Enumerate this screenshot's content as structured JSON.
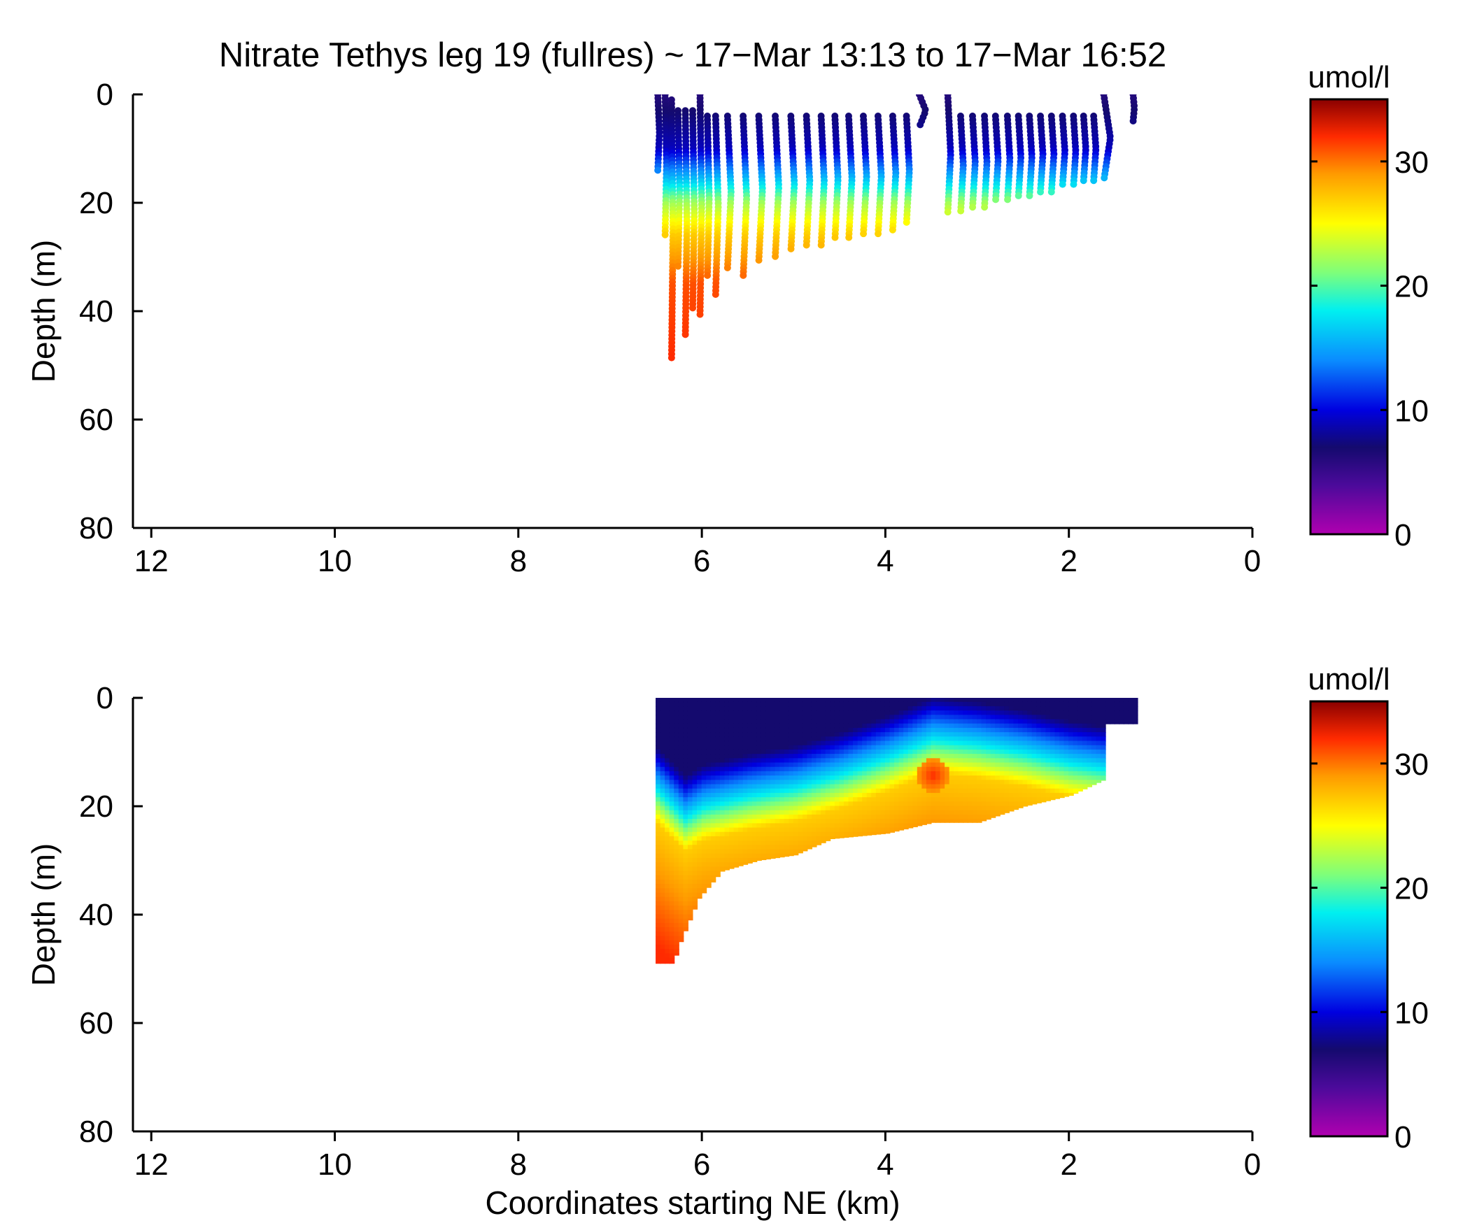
{
  "figure": {
    "title": "Nitrate Tethys leg 19 (fullres) ~ 17−Mar 13:13 to 17−Mar 16:52"
  },
  "colormap": {
    "name": "jet-like with magenta low end",
    "stops": [
      {
        "v": 0,
        "color": "#b000b0"
      },
      {
        "v": 4,
        "color": "#4a0a9a"
      },
      {
        "v": 7,
        "color": "#140a6e"
      },
      {
        "v": 10,
        "color": "#0000e0"
      },
      {
        "v": 14,
        "color": "#0a8cff"
      },
      {
        "v": 18,
        "color": "#00f0f0"
      },
      {
        "v": 21,
        "color": "#7cff7c"
      },
      {
        "v": 25,
        "color": "#ffff00"
      },
      {
        "v": 29,
        "color": "#ff9a00"
      },
      {
        "v": 32,
        "color": "#ff2a00"
      },
      {
        "v": 35,
        "color": "#8a0000"
      }
    ]
  },
  "chart_data": [
    {
      "type": "scatter",
      "panel": "top",
      "xlabel": "",
      "ylabel": "Depth (m)",
      "xlim": [
        12.2,
        0
      ],
      "ylim": [
        0,
        80
      ],
      "y_reversed": true,
      "xticks": [
        12,
        10,
        8,
        6,
        4,
        2,
        0
      ],
      "yticks": [
        0,
        20,
        40,
        60,
        80
      ],
      "colorbar": {
        "label": "umol/l",
        "range": [
          0,
          35
        ],
        "ticks": [
          0,
          10,
          20,
          30
        ]
      },
      "grid": false,
      "value_profile": [
        {
          "depth": 0,
          "nitrate": 6
        },
        {
          "depth": 10,
          "nitrate": 9
        },
        {
          "depth": 15,
          "nitrate": 15
        },
        {
          "depth": 20,
          "nitrate": 22
        },
        {
          "depth": 26,
          "nitrate": 27
        },
        {
          "depth": 35,
          "nitrate": 31
        },
        {
          "depth": 49,
          "nitrate": 32
        }
      ],
      "profiles": [
        {
          "x": 6.48,
          "top": 0,
          "bottom": 14
        },
        {
          "x": 6.4,
          "top": 0,
          "bottom": 26
        },
        {
          "x": 6.33,
          "top": 1,
          "bottom": 49
        },
        {
          "x": 6.26,
          "top": 3,
          "bottom": 32
        },
        {
          "x": 6.18,
          "top": 3,
          "bottom": 45
        },
        {
          "x": 6.1,
          "top": 3,
          "bottom": 40
        },
        {
          "x": 6.02,
          "top": 0,
          "bottom": 41
        },
        {
          "x": 5.94,
          "top": 4,
          "bottom": 34
        },
        {
          "x": 5.85,
          "top": 4,
          "bottom": 37
        },
        {
          "x": 5.72,
          "top": 4,
          "bottom": 32
        },
        {
          "x": 5.55,
          "top": 4,
          "bottom": 34
        },
        {
          "x": 5.38,
          "top": 4,
          "bottom": 31
        },
        {
          "x": 5.2,
          "top": 4,
          "bottom": 30
        },
        {
          "x": 5.03,
          "top": 4,
          "bottom": 29
        },
        {
          "x": 4.86,
          "top": 4,
          "bottom": 28
        },
        {
          "x": 4.7,
          "top": 4,
          "bottom": 28
        },
        {
          "x": 4.55,
          "top": 4,
          "bottom": 27
        },
        {
          "x": 4.4,
          "top": 4,
          "bottom": 27
        },
        {
          "x": 4.24,
          "top": 4,
          "bottom": 26
        },
        {
          "x": 4.08,
          "top": 4,
          "bottom": 26
        },
        {
          "x": 3.92,
          "top": 4,
          "bottom": 25
        },
        {
          "x": 3.77,
          "top": 4,
          "bottom": 24
        },
        {
          "x": 3.63,
          "top": 0,
          "bottom": 6
        },
        {
          "x": 3.32,
          "top": 0,
          "bottom": 22
        },
        {
          "x": 3.18,
          "top": 4,
          "bottom": 22
        },
        {
          "x": 3.05,
          "top": 4,
          "bottom": 21
        },
        {
          "x": 2.92,
          "top": 4,
          "bottom": 21
        },
        {
          "x": 2.8,
          "top": 4,
          "bottom": 20
        },
        {
          "x": 2.67,
          "top": 4,
          "bottom": 20
        },
        {
          "x": 2.55,
          "top": 4,
          "bottom": 19
        },
        {
          "x": 2.43,
          "top": 4,
          "bottom": 19
        },
        {
          "x": 2.31,
          "top": 4,
          "bottom": 18
        },
        {
          "x": 2.19,
          "top": 4,
          "bottom": 18
        },
        {
          "x": 2.07,
          "top": 4,
          "bottom": 17
        },
        {
          "x": 1.95,
          "top": 4,
          "bottom": 17
        },
        {
          "x": 1.84,
          "top": 4,
          "bottom": 16
        },
        {
          "x": 1.73,
          "top": 4,
          "bottom": 16
        },
        {
          "x": 1.62,
          "top": 0,
          "bottom": 16
        },
        {
          "x": 1.3,
          "top": 0,
          "bottom": 5
        }
      ]
    },
    {
      "type": "heatmap",
      "panel": "bottom",
      "xlabel": "Coordinates starting NE (km)",
      "ylabel": "Depth (m)",
      "xlim": [
        12.2,
        0
      ],
      "ylim": [
        0,
        80
      ],
      "y_reversed": true,
      "xticks": [
        12,
        10,
        8,
        6,
        4,
        2,
        0
      ],
      "yticks": [
        0,
        20,
        40,
        60,
        80
      ],
      "colorbar": {
        "label": "umol/l",
        "range": [
          0,
          35
        ],
        "ticks": [
          0,
          10,
          20,
          30
        ]
      },
      "grid": false,
      "x_extent": [
        6.5,
        1.3
      ],
      "bottom_boundary": [
        [
          6.5,
          49
        ],
        [
          6.33,
          49
        ],
        [
          6.25,
          45
        ],
        [
          6.05,
          37
        ],
        [
          5.8,
          32
        ],
        [
          5.4,
          30
        ],
        [
          5.0,
          29
        ],
        [
          4.6,
          26
        ],
        [
          4.0,
          25
        ],
        [
          3.5,
          23
        ],
        [
          3.0,
          23
        ],
        [
          2.5,
          20
        ],
        [
          2.0,
          18
        ],
        [
          1.62,
          15
        ]
      ],
      "nitracline": [
        [
          6.5,
          17
        ],
        [
          6.2,
          22
        ],
        [
          6.0,
          20
        ],
        [
          5.5,
          18
        ],
        [
          5.0,
          16.5
        ],
        [
          4.5,
          14
        ],
        [
          4.0,
          11
        ],
        [
          3.5,
          7.5
        ],
        [
          3.0,
          8.5
        ],
        [
          2.5,
          10
        ],
        [
          2.0,
          12
        ],
        [
          1.62,
          13
        ]
      ],
      "hotspot": {
        "x": 3.5,
        "depth": 14,
        "nitrate": 32
      }
    }
  ]
}
